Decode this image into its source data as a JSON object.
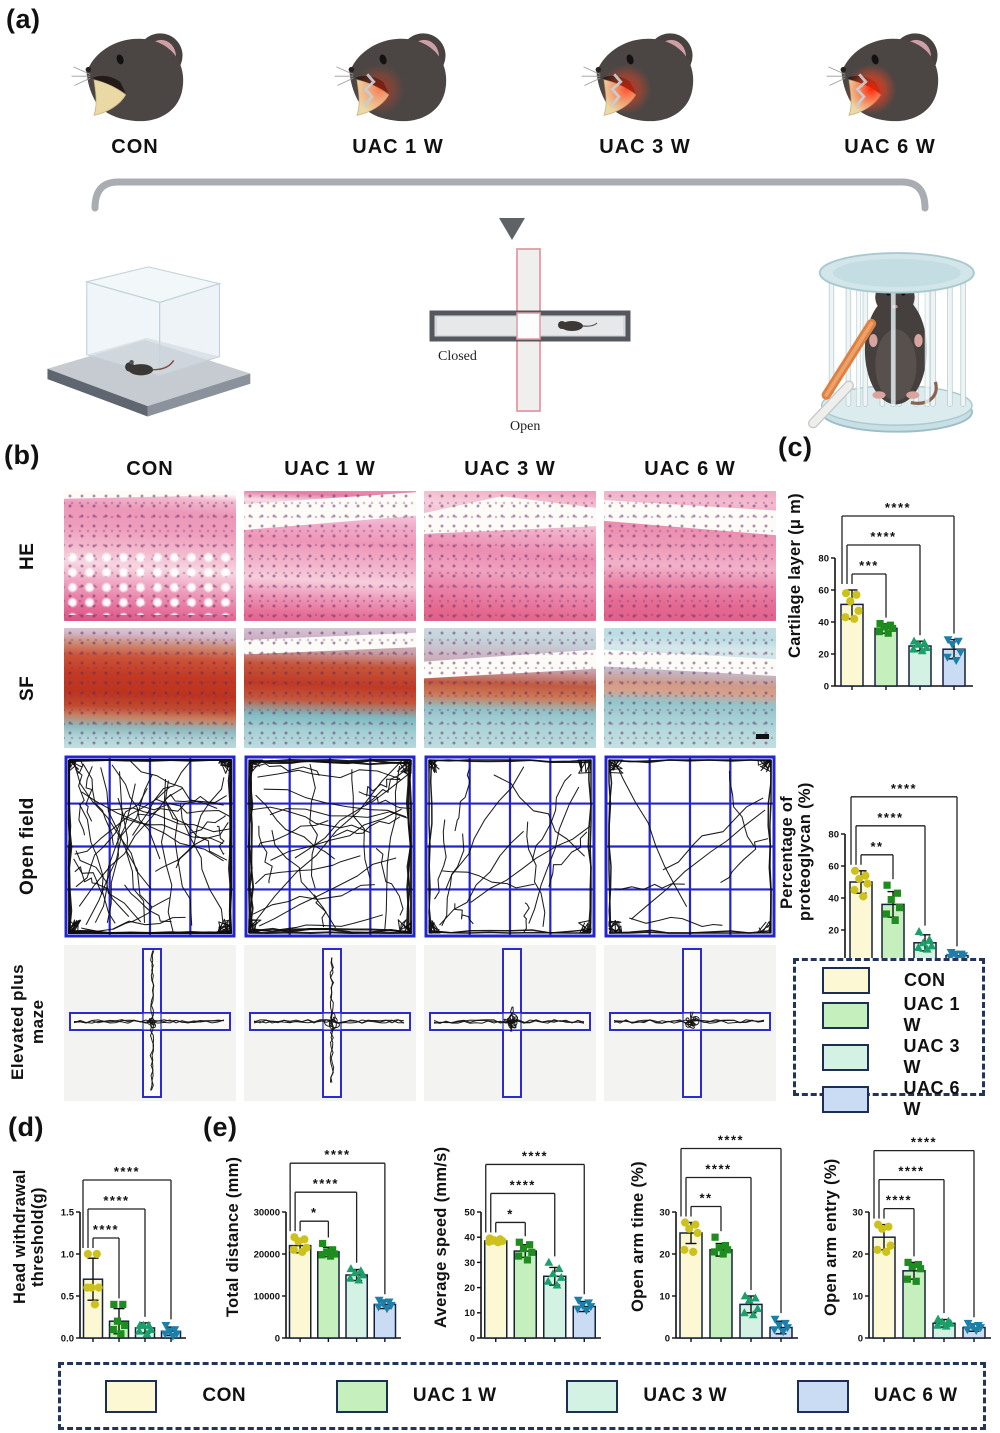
{
  "figure": {
    "panel_a_label": "(a)",
    "panel_b_label": "(b)",
    "panel_c_label": "(c)",
    "panel_d_label": "(d)",
    "panel_e_label": "(e)"
  },
  "groups": [
    {
      "label": "CON",
      "bar_color": "#fbf8d3",
      "marker_color": "#cdc11d",
      "marker": "circle"
    },
    {
      "label": "UAC 1 W",
      "bar_color": "#c5efbc",
      "marker_color": "#1e8c1e",
      "marker": "square"
    },
    {
      "label": "UAC 3 W",
      "bar_color": "#d4f2e4",
      "marker_color": "#1aa06a",
      "marker": "triangle-up"
    },
    {
      "label": "UAC 6 W",
      "bar_color": "#c9dcf4",
      "marker_color": "#1b7fa8",
      "marker": "triangle-down"
    }
  ],
  "panel_a": {
    "mice_labels": [
      "CON",
      "UAC 1 W",
      "UAC 3 W",
      "UAC 6 W"
    ],
    "maze": {
      "closed_label": "Closed",
      "open_label": "Open"
    }
  },
  "panel_b": {
    "column_headers": [
      "CON",
      "UAC 1 W",
      "UAC 3 W",
      "UAC 6 W"
    ],
    "row_labels": [
      "HE",
      "SF",
      "Open field",
      "Elevated plus maze"
    ],
    "open_field_trace_density": [
      1.0,
      0.75,
      0.45,
      0.25
    ],
    "plus_maze_open_arm_extent": [
      0.98,
      0.88,
      0.2,
      0.13
    ]
  },
  "legend_side": {
    "items": [
      "CON",
      "UAC 1 W",
      "UAC 3 W",
      "UAC 6 W"
    ]
  },
  "legend_bottom": {
    "items": [
      "CON",
      "UAC 1 W",
      "UAC 3 W",
      "UAC 6 W"
    ]
  },
  "chart_data": [
    {
      "id": "cartilage_layer",
      "type": "bar",
      "panel": "c",
      "ylabel_lines": [
        "Cartilage layer (μ m)"
      ],
      "categories": [
        "CON",
        "UAC 1 W",
        "UAC 3 W",
        "UAC 6 W"
      ],
      "values": [
        51,
        36,
        25,
        23
      ],
      "errors": [
        9,
        3,
        3,
        6
      ],
      "points": [
        [
          58,
          57,
          53,
          47,
          43,
          42
        ],
        [
          39,
          38,
          37,
          36,
          34,
          33
        ],
        [
          28,
          27,
          26,
          24,
          23,
          22
        ],
        [
          29,
          28,
          26,
          21,
          18,
          16
        ]
      ],
      "ylim": [
        0,
        80
      ],
      "yticks": [
        0,
        20,
        40,
        60,
        80
      ],
      "ytick_labels": [
        "0",
        "20",
        "40",
        "60",
        "80"
      ],
      "sig": [
        {
          "from": 0,
          "to": 1,
          "stars": "***"
        },
        {
          "from": 0,
          "to": 2,
          "stars": "****"
        },
        {
          "from": 0,
          "to": 3,
          "stars": "****"
        }
      ]
    },
    {
      "id": "proteoglycan",
      "type": "bar",
      "panel": "c",
      "ylabel_lines": [
        "Percentage of",
        "proteoglycan (%)"
      ],
      "categories": [
        "CON",
        "UAC 1 W",
        "UAC 3 W",
        "UAC 6 W"
      ],
      "values": [
        50,
        36,
        12,
        4
      ],
      "errors": [
        7,
        8,
        5,
        2
      ],
      "points": [
        [
          57,
          54,
          52,
          49,
          45,
          41
        ],
        [
          48,
          43,
          39,
          34,
          30,
          26
        ],
        [
          19,
          14,
          12,
          10,
          9,
          8
        ],
        [
          6,
          5,
          5,
          4,
          3,
          2
        ]
      ],
      "ylim": [
        0,
        80
      ],
      "yticks": [
        0,
        20,
        40,
        60,
        80
      ],
      "ytick_labels": [
        "0",
        "20",
        "40",
        "60",
        "80"
      ],
      "sig": [
        {
          "from": 0,
          "to": 1,
          "stars": "**"
        },
        {
          "from": 0,
          "to": 2,
          "stars": "****"
        },
        {
          "from": 0,
          "to": 3,
          "stars": "****"
        }
      ]
    },
    {
      "id": "head_withdrawal",
      "type": "bar",
      "panel": "d",
      "ylabel_lines": [
        "Head withdrawal",
        "threshold(g)"
      ],
      "categories": [
        "CON",
        "UAC 1 W",
        "UAC 3 W",
        "UAC 6 W"
      ],
      "values": [
        0.7,
        0.2,
        0.12,
        0.08
      ],
      "errors": [
        0.25,
        0.15,
        0.06,
        0.05
      ],
      "points": [
        [
          1.0,
          1.0,
          0.6,
          0.6,
          0.6,
          0.4
        ],
        [
          0.4,
          0.4,
          0.2,
          0.15,
          0.1,
          0.05
        ],
        [
          0.15,
          0.15,
          0.15,
          0.1,
          0.08,
          0.05
        ],
        [
          0.15,
          0.1,
          0.08,
          0.05,
          0.05,
          0.02
        ]
      ],
      "ylim": [
        0,
        1.5
      ],
      "yticks": [
        0,
        0.5,
        1.0,
        1.5
      ],
      "ytick_labels": [
        "0.0",
        "0.5",
        "1.0",
        "1.5"
      ],
      "sig": [
        {
          "from": 0,
          "to": 1,
          "stars": "****"
        },
        {
          "from": 0,
          "to": 2,
          "stars": "****"
        },
        {
          "from": 0,
          "to": 3,
          "stars": "****"
        }
      ]
    },
    {
      "id": "total_distance",
      "type": "bar",
      "panel": "e",
      "ylabel_lines": [
        "Total distance (mm)"
      ],
      "categories": [
        "CON",
        "UAC 1 W",
        "UAC 3 W",
        "UAC 6 W"
      ],
      "values": [
        22000,
        20500,
        15000,
        8000
      ],
      "errors": [
        1700,
        1100,
        1300,
        1000
      ],
      "points": [
        [
          24000,
          23500,
          23000,
          21500,
          21000,
          20500
        ],
        [
          22500,
          21000,
          20500,
          20000,
          19800,
          19500
        ],
        [
          16500,
          16000,
          15500,
          15000,
          14200,
          13800
        ],
        [
          9000,
          8600,
          8200,
          7800,
          7400,
          7000
        ]
      ],
      "ylim": [
        0,
        30000
      ],
      "yticks": [
        0,
        10000,
        20000,
        30000
      ],
      "ytick_labels": [
        "0",
        "10000",
        "20000",
        "30000"
      ],
      "sig": [
        {
          "from": 0,
          "to": 1,
          "stars": "*"
        },
        {
          "from": 0,
          "to": 2,
          "stars": "****"
        },
        {
          "from": 0,
          "to": 3,
          "stars": "****"
        }
      ]
    },
    {
      "id": "average_speed",
      "type": "bar",
      "panel": "e",
      "ylabel_lines": [
        "Average speed (mm/s)"
      ],
      "categories": [
        "CON",
        "UAC 1 W",
        "UAC 3 W",
        "UAC 6 W"
      ],
      "values": [
        38.5,
        34.5,
        24.5,
        12.5
      ],
      "errors": [
        1,
        2.5,
        3.5,
        2
      ],
      "points": [
        [
          39.5,
          39.2,
          38.8,
          38.5,
          38.2,
          38
        ],
        [
          38,
          37,
          35.5,
          34,
          32.5,
          31
        ],
        [
          30,
          27.5,
          25.5,
          24,
          22.5,
          21
        ],
        [
          15,
          14,
          13,
          12.5,
          11.5,
          11
        ]
      ],
      "ylim": [
        0,
        50
      ],
      "yticks": [
        0,
        10,
        20,
        30,
        40,
        50
      ],
      "ytick_labels": [
        "0",
        "10",
        "20",
        "30",
        "40",
        "50"
      ],
      "sig": [
        {
          "from": 0,
          "to": 1,
          "stars": "*"
        },
        {
          "from": 0,
          "to": 2,
          "stars": "****"
        },
        {
          "from": 0,
          "to": 3,
          "stars": "****"
        }
      ]
    },
    {
      "id": "open_arm_time",
      "type": "bar",
      "panel": "e",
      "ylabel_lines": [
        "Open arm time (%)"
      ],
      "categories": [
        "CON",
        "UAC 1 W",
        "UAC 3 W",
        "UAC 6 W"
      ],
      "values": [
        25,
        21,
        8,
        2.5
      ],
      "errors": [
        2.5,
        1.5,
        2,
        1.5
      ],
      "points": [
        [
          27.5,
          27,
          26,
          25,
          21,
          20.5
        ],
        [
          24,
          22,
          21.5,
          21,
          20.5,
          20
        ],
        [
          10,
          9.5,
          9,
          7,
          6,
          5.5
        ],
        [
          4.5,
          3.5,
          3,
          2.5,
          2,
          1.5
        ]
      ],
      "ylim": [
        0,
        30
      ],
      "yticks": [
        0,
        10,
        20,
        30
      ],
      "ytick_labels": [
        "0",
        "10",
        "20",
        "30"
      ],
      "sig": [
        {
          "from": 0,
          "to": 1,
          "stars": "**"
        },
        {
          "from": 0,
          "to": 2,
          "stars": "****"
        },
        {
          "from": 0,
          "to": 3,
          "stars": "****"
        }
      ]
    },
    {
      "id": "open_arm_entry",
      "type": "bar",
      "panel": "e",
      "ylabel_lines": [
        "Open arm entry (%)"
      ],
      "categories": [
        "CON",
        "UAC 1 W",
        "UAC 3 W",
        "UAC 6 W"
      ],
      "values": [
        24,
        16,
        3.5,
        2.5
      ],
      "errors": [
        3,
        2,
        0.9,
        0.9
      ],
      "points": [
        [
          27,
          26.5,
          26,
          22,
          21,
          20.5
        ],
        [
          18,
          17.5,
          17,
          16.5,
          14,
          13.5
        ],
        [
          4.5,
          4,
          3.8,
          3.5,
          3,
          2.8
        ],
        [
          3.5,
          3,
          2.8,
          2.5,
          2,
          1.8
        ]
      ],
      "ylim": [
        0,
        30
      ],
      "yticks": [
        0,
        10,
        20,
        30
      ],
      "ytick_labels": [
        "0",
        "10",
        "20",
        "30"
      ],
      "sig": [
        {
          "from": 0,
          "to": 1,
          "stars": "****"
        },
        {
          "from": 0,
          "to": 2,
          "stars": "****"
        },
        {
          "from": 0,
          "to": 3,
          "stars": "****"
        }
      ]
    }
  ]
}
